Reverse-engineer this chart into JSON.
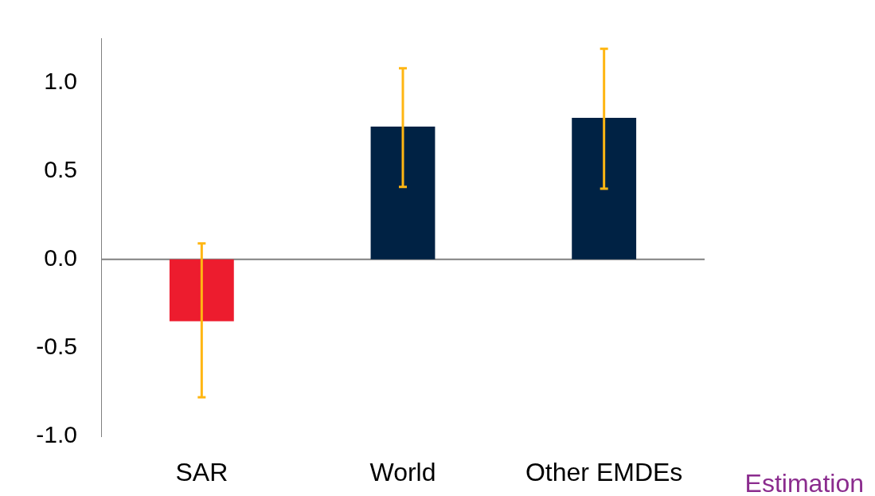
{
  "chart_data": {
    "type": "bar",
    "categories": [
      "SAR",
      "World",
      "Other EMDEs"
    ],
    "values": [
      -0.35,
      0.75,
      0.8
    ],
    "colors": [
      "#ed1c2e",
      "#002244",
      "#002244"
    ],
    "errors": [
      [
        -0.78,
        0.09
      ],
      [
        0.41,
        1.08
      ],
      [
        0.4,
        1.19
      ]
    ],
    "ylim": [
      -1.0,
      1.25
    ],
    "yticks": [
      {
        "value": -1,
        "label": "-1.0"
      },
      {
        "value": -0.5,
        "label": "-0.5"
      },
      {
        "value": 0,
        "label": "0.0"
      },
      {
        "value": 0.5,
        "label": "0.5"
      },
      {
        "value": 1,
        "label": "1.0"
      }
    ],
    "ref_lines": [
      {
        "axis": "y",
        "value": 0,
        "color": "#808080"
      }
    ],
    "grid": false,
    "legend": false,
    "annotations": [
      "Estimation"
    ]
  }
}
